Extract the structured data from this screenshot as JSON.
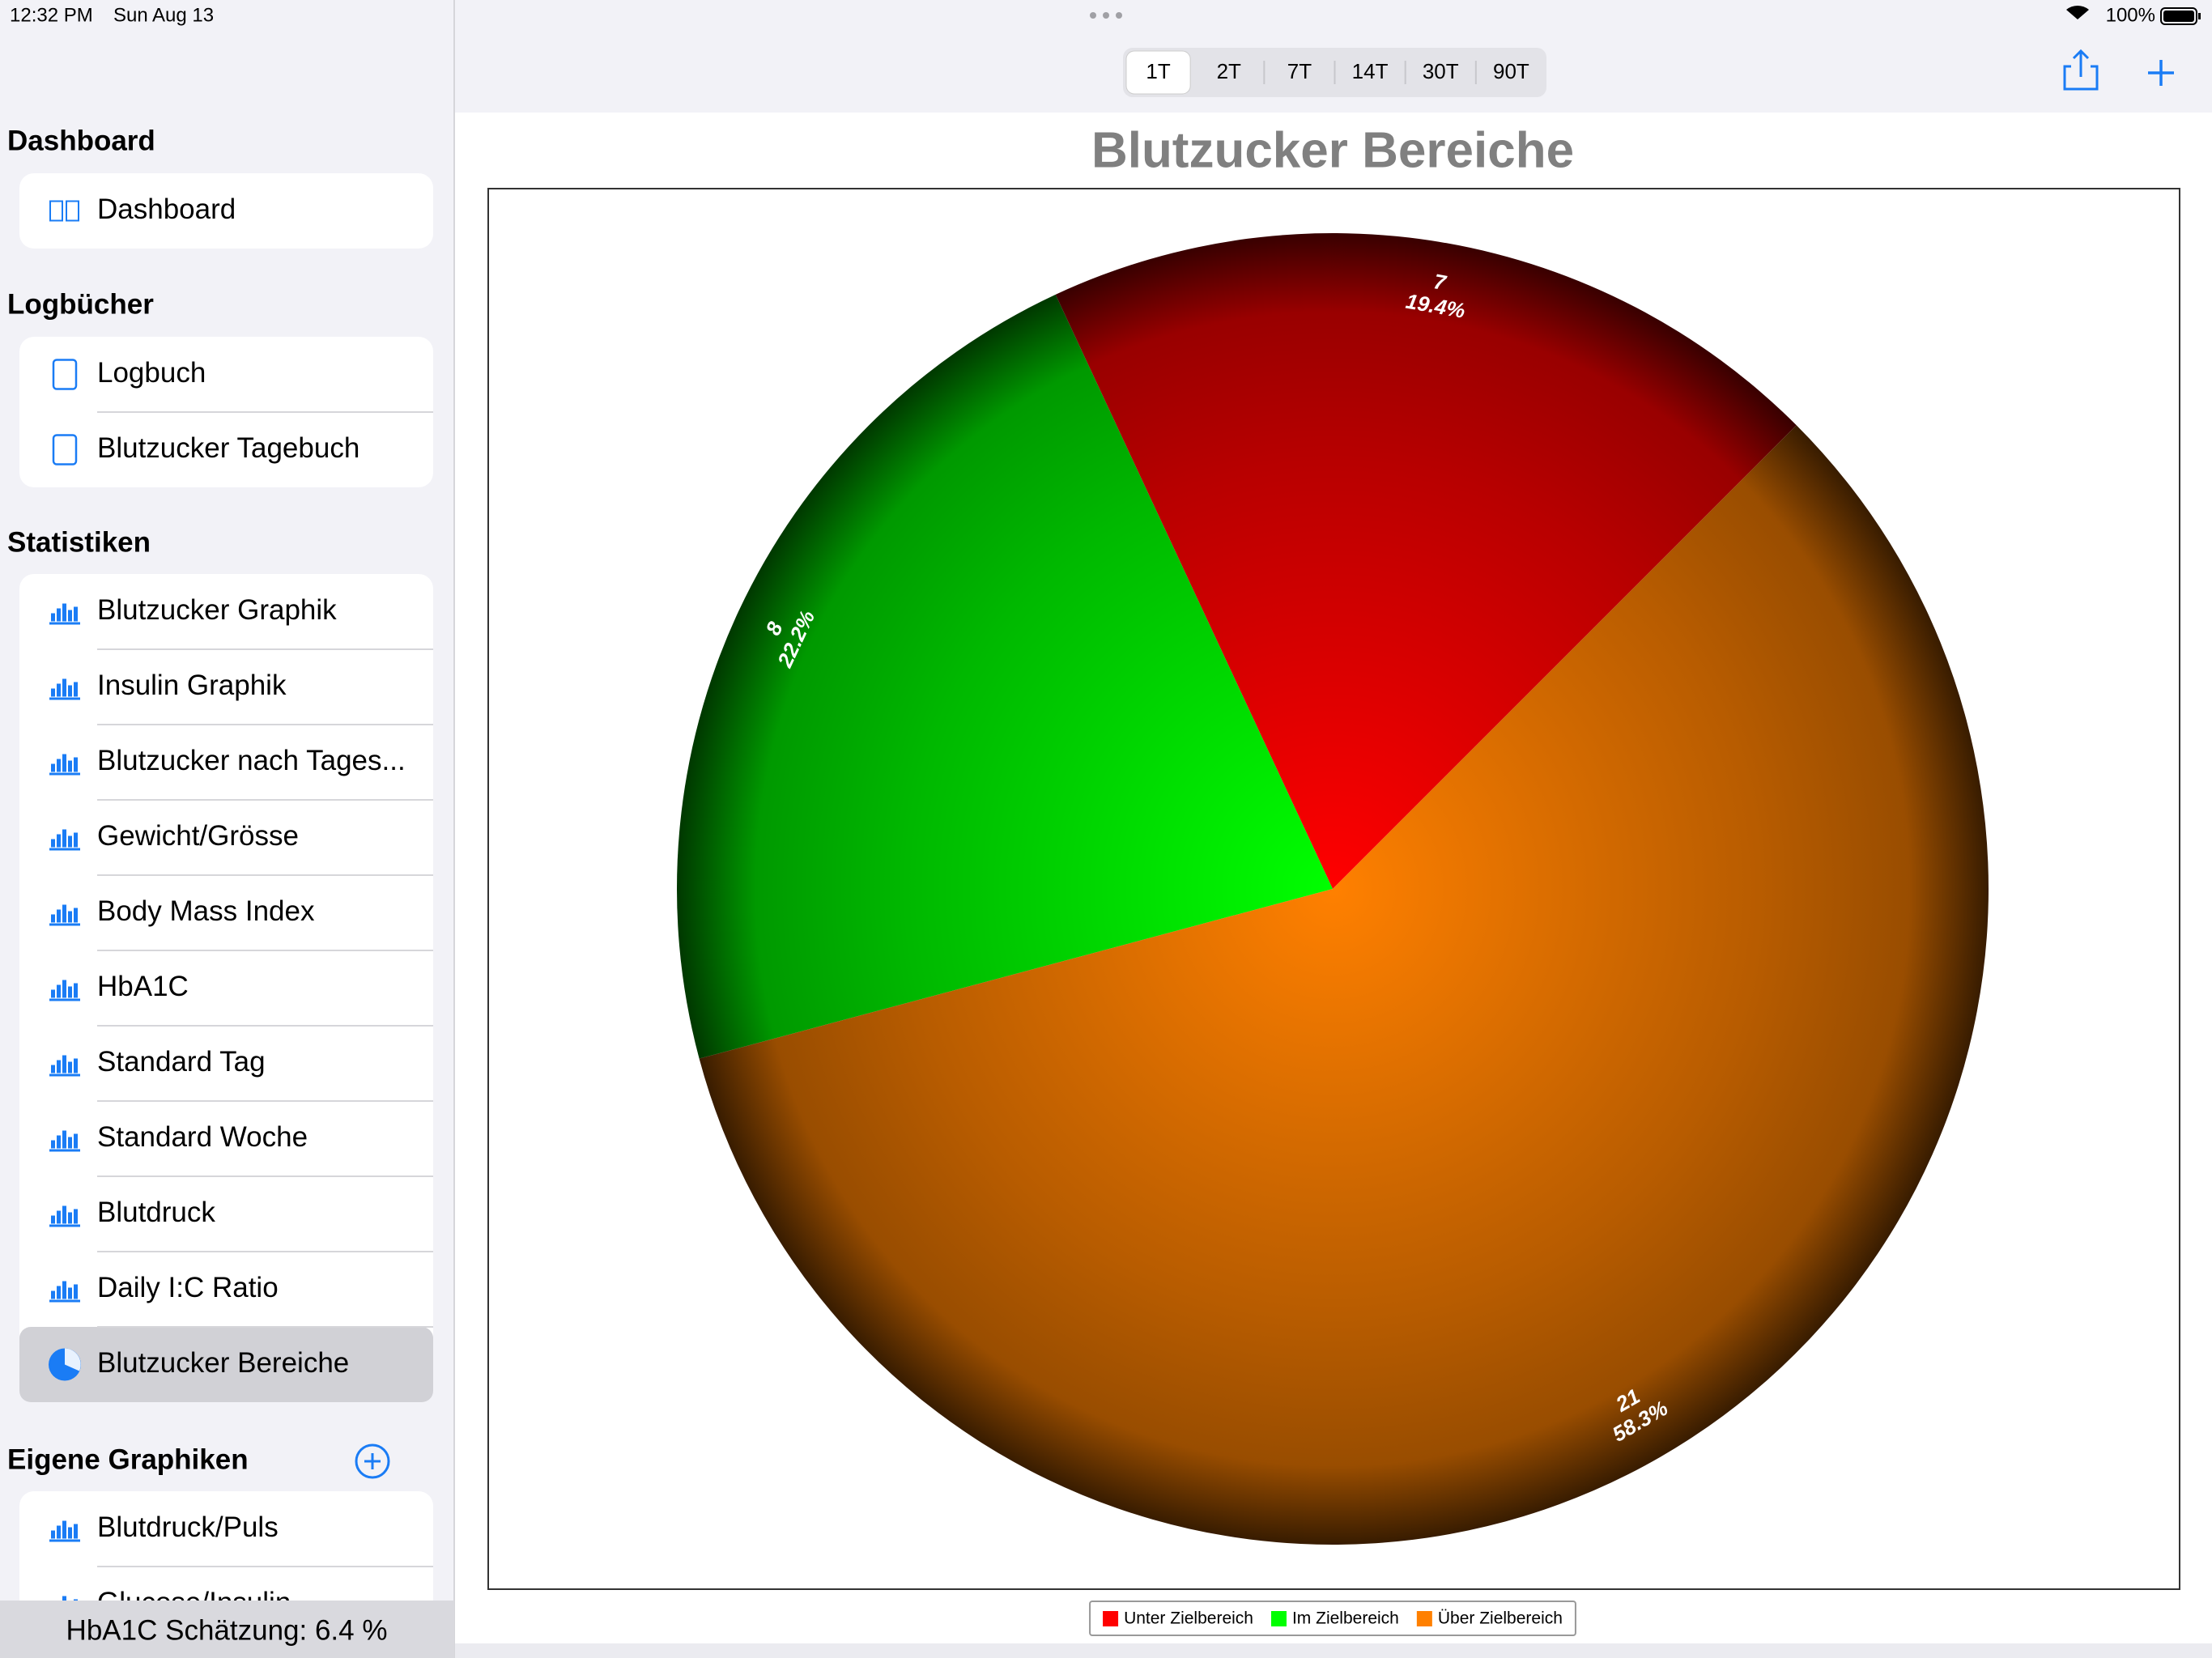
{
  "status_bar": {
    "time": "12:32 PM",
    "date": "Sun Aug 13",
    "battery": "100%"
  },
  "sidebar": {
    "sections": [
      {
        "title": "Dashboard",
        "items": [
          "Dashboard"
        ]
      },
      {
        "title": "Logbücher",
        "items": [
          "Logbuch",
          "Blutzucker Tagebuch"
        ]
      },
      {
        "title": "Statistiken",
        "items": [
          "Blutzucker Graphik",
          "Insulin Graphik",
          "Blutzucker nach Tages...",
          "Gewicht/Grösse",
          "Body Mass Index",
          "HbA1C",
          "Standard Tag",
          "Standard Woche",
          "Blutdruck",
          "Daily I:C Ratio",
          "Blutzucker Bereiche"
        ]
      },
      {
        "title": "Eigene Graphiken",
        "items": [
          "Blutdruck/Puls",
          "Glucose/Insulin"
        ]
      }
    ]
  },
  "footer": "HbA1C Schätzung: 6.4 %",
  "segments": [
    "1T",
    "2T",
    "7T",
    "14T",
    "30T",
    "90T"
  ],
  "chart_data": {
    "type": "pie",
    "title": "Blutzucker Bereiche",
    "categories": [
      "Unter Zielbereich",
      "Im Zielbereich",
      "Über Zielbereich"
    ],
    "values": [
      7,
      8,
      21
    ],
    "percent_labels": [
      "19.4%",
      "22.2%",
      "58.3%"
    ],
    "colors": [
      "#ff0000",
      "#00ff00",
      "#ff8000"
    ],
    "legend": "bottom"
  }
}
